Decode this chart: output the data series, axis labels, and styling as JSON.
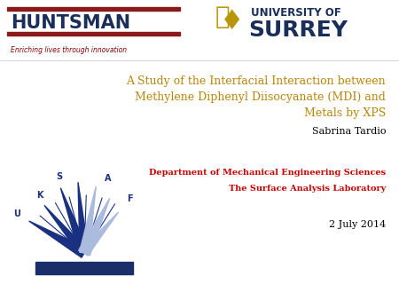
{
  "bg_color": "#ffffff",
  "title_line1": "A Study of the Interfacial Interaction between",
  "title_line2": "Methylene Diphenyl Diisocyanate (MDI) and",
  "title_line3": "Metals by XPS",
  "title_color": "#b8860b",
  "author": "Sabrina Tardio",
  "author_color": "#000000",
  "dept": "Department of Mechanical Engineering Sciences",
  "dept_color": "#cc0000",
  "lab": "The Surface Analysis Laboratory",
  "lab_color": "#cc0000",
  "date": "2 July 2014",
  "date_color": "#000000",
  "huntsman_text": "HUNTSMAN",
  "huntsman_color": "#1a2e5a",
  "huntsman_tagline": "Enriching lives through innovation",
  "huntsman_tagline_color": "#8b0000",
  "surrey_text1": "UNIVERSITY OF",
  "surrey_text2": "SURREY",
  "surrey_color": "#1a2e5a",
  "huntsman_bar_color": "#8b1a1a",
  "sal_base_color": "#1a2e6a",
  "sal_arrow_color_dark": "#1a3080",
  "sal_arrow_color_light": "#aabbdd"
}
